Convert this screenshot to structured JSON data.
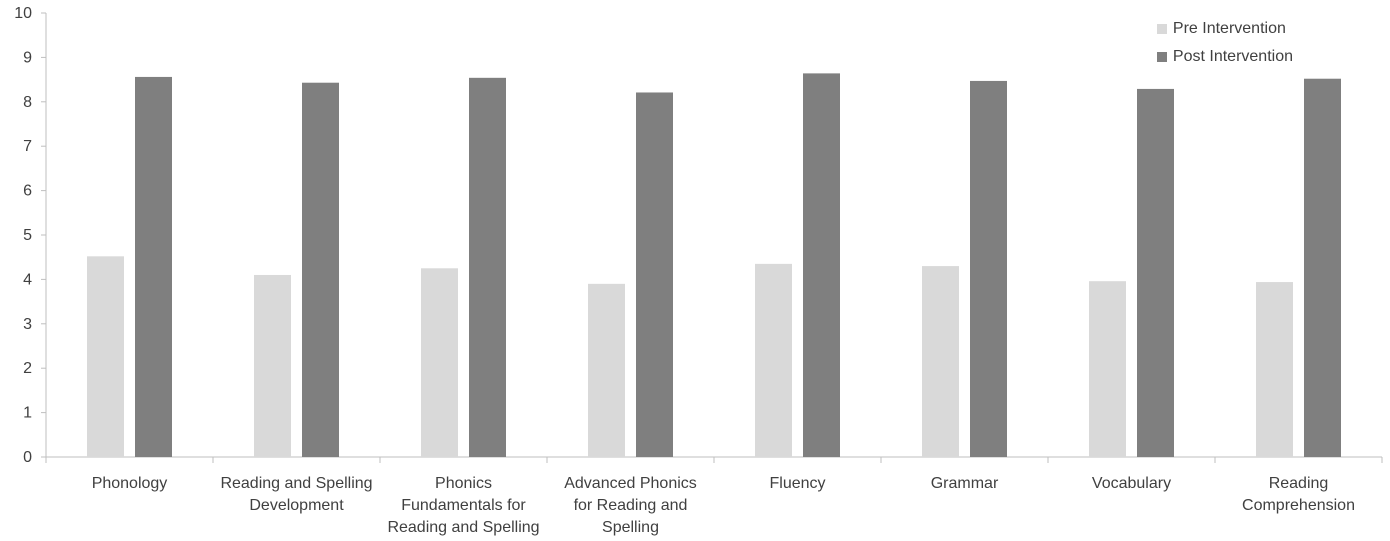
{
  "chart_data": {
    "type": "bar",
    "title": "",
    "xlabel": "",
    "ylabel": "",
    "ylim": [
      0,
      10
    ],
    "yticks": [
      0,
      1,
      2,
      3,
      4,
      5,
      6,
      7,
      8,
      9,
      10
    ],
    "grid": false,
    "legend_position": "top-right",
    "categories": [
      [
        "Phonology"
      ],
      [
        "Reading and Spelling",
        "Development"
      ],
      [
        "Phonics",
        "Fundamentals for",
        "Reading and Spelling"
      ],
      [
        "Advanced Phonics",
        "for Reading and",
        "Spelling"
      ],
      [
        "Fluency"
      ],
      [
        "Grammar"
      ],
      [
        "Vocabulary"
      ],
      [
        "Reading",
        "Comprehension"
      ]
    ],
    "series": [
      {
        "name": "Pre Intervention",
        "color": "#d9d9d9",
        "values": [
          4.52,
          4.1,
          4.25,
          3.9,
          4.35,
          4.3,
          3.96,
          3.94
        ]
      },
      {
        "name": "Post Intervention",
        "color": "#7f7f7f",
        "values": [
          8.56,
          8.43,
          8.54,
          8.21,
          8.64,
          8.47,
          8.29,
          8.52
        ]
      }
    ],
    "axis_color": "#bfbfbf"
  }
}
